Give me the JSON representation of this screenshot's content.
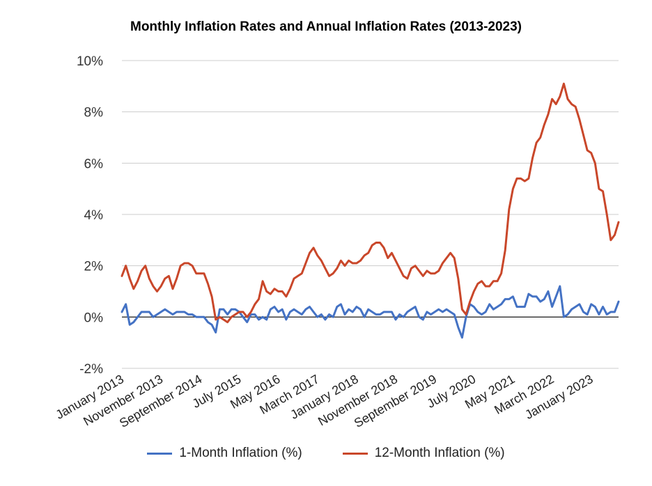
{
  "chart_data": {
    "type": "line",
    "title": "Monthly Inflation Rates and Annual Inflation Rates (2013-2023)",
    "xlabel": "",
    "ylabel": "",
    "ylim": [
      -2,
      10
    ],
    "y_ticks": [
      "10%",
      "8%",
      "6%",
      "4%",
      "2%",
      "0%",
      "-2%"
    ],
    "y_tick_values": [
      10,
      8,
      6,
      4,
      2,
      0,
      -2
    ],
    "x_tick_labels": [
      "January 2013",
      "November 2013",
      "September 2014",
      "July 2015",
      "May 2016",
      "March 2017",
      "January 2018",
      "November 2018",
      "September 2019",
      "July 2020",
      "May 2021",
      "March 2022",
      "January 2023"
    ],
    "x_tick_indices": [
      0,
      10,
      20,
      30,
      40,
      50,
      60,
      70,
      80,
      90,
      100,
      110,
      120
    ],
    "grid": true,
    "legend_position": "bottom",
    "series": [
      {
        "name": "1-Month Inflation (%)",
        "color": "#4472C4",
        "values": [
          0.2,
          0.5,
          -0.3,
          -0.2,
          0.0,
          0.2,
          0.2,
          0.2,
          0.0,
          0.1,
          0.2,
          0.3,
          0.2,
          0.1,
          0.2,
          0.2,
          0.2,
          0.1,
          0.1,
          0.0,
          0.0,
          0.0,
          -0.2,
          -0.3,
          -0.6,
          0.3,
          0.3,
          0.1,
          0.3,
          0.3,
          0.2,
          0.0,
          -0.2,
          0.1,
          0.1,
          -0.1,
          0.0,
          -0.1,
          0.3,
          0.4,
          0.2,
          0.3,
          -0.1,
          0.2,
          0.3,
          0.2,
          0.1,
          0.3,
          0.4,
          0.2,
          0.0,
          0.1,
          -0.1,
          0.1,
          0.0,
          0.4,
          0.5,
          0.1,
          0.3,
          0.2,
          0.4,
          0.3,
          0.0,
          0.3,
          0.2,
          0.1,
          0.1,
          0.2,
          0.2,
          0.2,
          -0.1,
          0.1,
          0.0,
          0.2,
          0.3,
          0.4,
          0.0,
          -0.1,
          0.2,
          0.1,
          0.2,
          0.3,
          0.2,
          0.3,
          0.2,
          0.1,
          -0.4,
          -0.8,
          0.0,
          0.5,
          0.4,
          0.2,
          0.1,
          0.2,
          0.5,
          0.3,
          0.4,
          0.5,
          0.7,
          0.7,
          0.8,
          0.4,
          0.4,
          0.4,
          0.9,
          0.8,
          0.8,
          0.6,
          0.7,
          1.0,
          0.4,
          0.8,
          1.2,
          0.0,
          0.1,
          0.3,
          0.4,
          0.5,
          0.2,
          0.1,
          0.5,
          0.4,
          0.1,
          0.4,
          0.1,
          0.2,
          0.2,
          0.6
        ]
      },
      {
        "name": "12-Month Inflation (%)",
        "color": "#C9472A",
        "values": [
          1.6,
          2.0,
          1.5,
          1.1,
          1.4,
          1.8,
          2.0,
          1.5,
          1.2,
          1.0,
          1.2,
          1.5,
          1.6,
          1.1,
          1.5,
          2.0,
          2.1,
          2.1,
          2.0,
          1.7,
          1.7,
          1.7,
          1.3,
          0.8,
          -0.1,
          0.0,
          -0.1,
          -0.2,
          0.0,
          0.1,
          0.2,
          0.2,
          0.0,
          0.2,
          0.5,
          0.7,
          1.4,
          1.0,
          0.9,
          1.1,
          1.0,
          1.0,
          0.8,
          1.1,
          1.5,
          1.6,
          1.7,
          2.1,
          2.5,
          2.7,
          2.4,
          2.2,
          1.9,
          1.6,
          1.7,
          1.9,
          2.2,
          2.0,
          2.2,
          2.1,
          2.1,
          2.2,
          2.4,
          2.5,
          2.8,
          2.9,
          2.9,
          2.7,
          2.3,
          2.5,
          2.2,
          1.9,
          1.6,
          1.5,
          1.9,
          2.0,
          1.8,
          1.6,
          1.8,
          1.7,
          1.7,
          1.8,
          2.1,
          2.3,
          2.5,
          2.3,
          1.5,
          0.3,
          0.1,
          0.6,
          1.0,
          1.3,
          1.4,
          1.2,
          1.2,
          1.4,
          1.4,
          1.7,
          2.6,
          4.2,
          5.0,
          5.4,
          5.4,
          5.3,
          5.4,
          6.2,
          6.8,
          7.0,
          7.5,
          7.9,
          8.5,
          8.3,
          8.6,
          9.1,
          8.5,
          8.3,
          8.2,
          7.7,
          7.1,
          6.5,
          6.4,
          6.0,
          5.0,
          4.9,
          4.0,
          3.0,
          3.2,
          3.7
        ]
      }
    ]
  }
}
